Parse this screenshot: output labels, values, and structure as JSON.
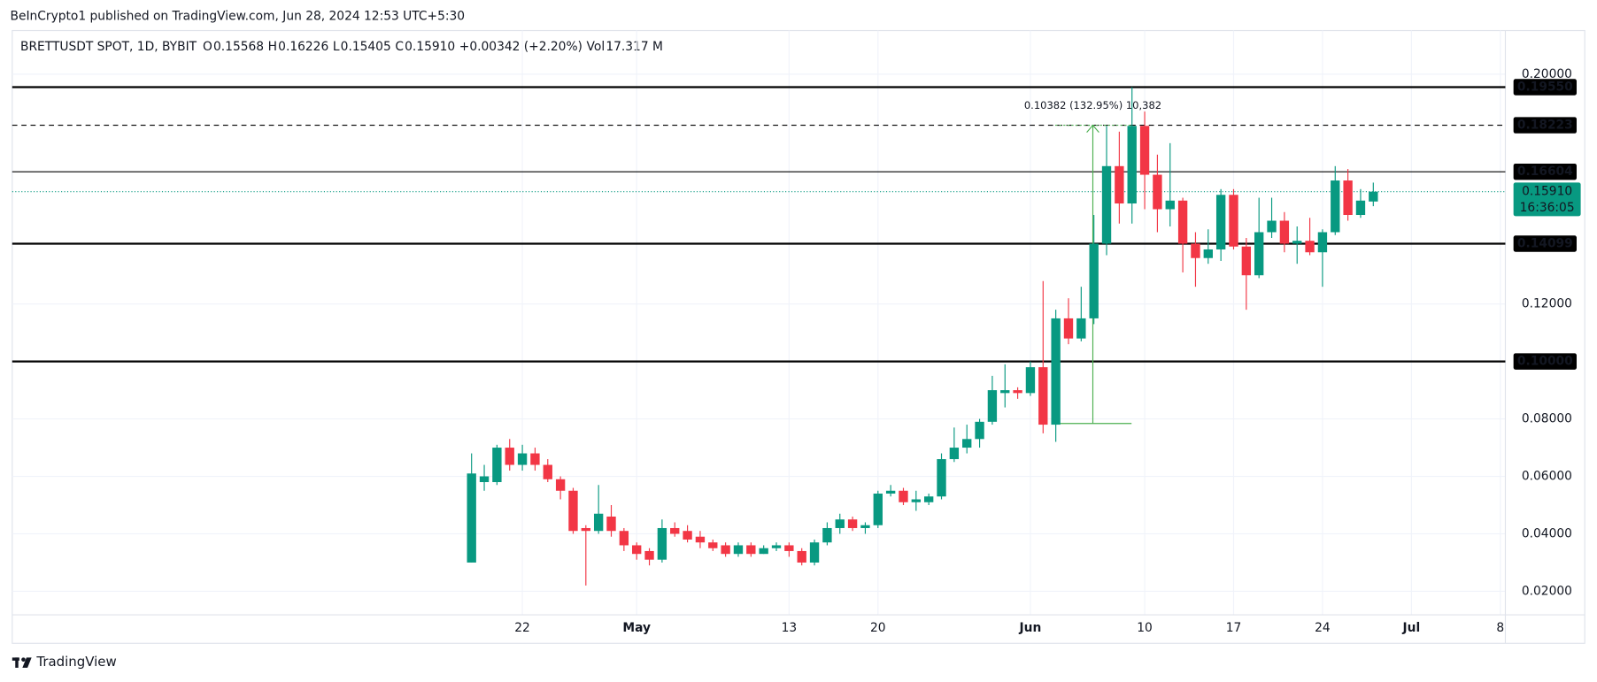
{
  "header": {
    "published": "BeInCrypto1 published on TradingView.com, Jun 28, 2024 12:53 UTC+5:30"
  },
  "legend": {
    "symbol": "BRETTUSDT SPOT, 1D, BYBIT",
    "items": [
      {
        "label": "O",
        "value": "0.15568"
      },
      {
        "label": "H",
        "value": "0.16226"
      },
      {
        "label": "L",
        "value": "0.15405"
      },
      {
        "label": "C",
        "value": "0.15910"
      }
    ],
    "change": "+0.00342 (+2.20%)",
    "vol_label": "Vol",
    "vol": "17.317 M"
  },
  "footer": {
    "brand": "TradingView"
  },
  "chart_data": {
    "type": "candlestick",
    "categories": [
      null,
      null,
      null,
      null,
      "22",
      null,
      null,
      null,
      null,
      null,
      null,
      null,
      null,
      "May",
      null,
      null,
      null,
      null,
      null,
      null,
      null,
      null,
      null,
      null,
      null,
      "13",
      null,
      null,
      null,
      null,
      null,
      null,
      "20",
      null,
      null,
      null,
      null,
      null,
      null,
      null,
      null,
      null,
      null,
      null,
      "Jun",
      null,
      null,
      null,
      null,
      null,
      null,
      null,
      null,
      "10",
      null,
      null,
      null,
      null,
      null,
      null,
      "17",
      null,
      null,
      null,
      null,
      null,
      null,
      "24",
      null,
      null,
      null,
      null,
      null,
      null,
      "Jul",
      null,
      null,
      null,
      null,
      null,
      null,
      "8"
    ],
    "open": [
      0.03,
      0.058,
      0.058,
      0.07,
      0.064,
      0.068,
      0.064,
      0.059,
      0.055,
      0.042,
      0.041,
      0.046,
      0.041,
      0.036,
      0.034,
      0.031,
      0.042,
      0.041,
      0.039,
      0.037,
      0.036,
      0.033,
      0.036,
      0.033,
      0.035,
      0.036,
      0.034,
      0.03,
      0.037,
      0.042,
      0.045,
      0.042,
      0.043,
      0.054,
      0.055,
      0.051,
      0.051,
      0.053,
      0.066,
      0.07,
      0.073,
      0.079,
      0.089,
      0.09,
      0.089,
      0.098,
      0.078,
      0.115,
      0.108,
      0.115,
      0.141,
      0.168,
      0.155,
      0.182,
      0.165,
      0.153,
      0.156,
      0.141,
      0.136,
      0.139,
      0.158,
      0.14,
      0.13,
      0.145,
      0.149,
      0.141,
      0.142,
      0.138,
      0.145,
      0.163,
      0.151,
      0.15568,
      null,
      null,
      null,
      null,
      null,
      null,
      null,
      null,
      null,
      null
    ],
    "high": [
      0.068,
      0.064,
      0.071,
      0.073,
      0.071,
      0.07,
      0.066,
      0.06,
      0.056,
      0.043,
      0.057,
      0.05,
      0.042,
      0.037,
      0.035,
      0.045,
      0.044,
      0.043,
      0.041,
      0.038,
      0.037,
      0.037,
      0.037,
      0.036,
      0.037,
      0.037,
      0.035,
      0.038,
      0.044,
      0.047,
      0.046,
      0.044,
      0.055,
      0.057,
      0.056,
      0.055,
      0.054,
      0.068,
      0.077,
      0.078,
      0.08,
      0.095,
      0.099,
      0.091,
      0.1,
      0.128,
      0.118,
      0.122,
      0.126,
      0.151,
      0.182,
      0.18,
      0.1955,
      0.187,
      0.172,
      0.176,
      0.157,
      0.145,
      0.146,
      0.16,
      0.16,
      0.143,
      0.157,
      0.157,
      0.152,
      0.147,
      0.15,
      0.146,
      0.168,
      0.167,
      0.16,
      0.16226,
      null,
      null,
      null,
      null,
      null,
      null,
      null,
      null,
      null,
      null
    ],
    "low": [
      0.03,
      0.055,
      0.057,
      0.062,
      0.062,
      0.062,
      0.058,
      0.052,
      0.04,
      0.022,
      0.04,
      0.039,
      0.034,
      0.031,
      0.029,
      0.03,
      0.039,
      0.037,
      0.035,
      0.034,
      0.032,
      0.032,
      0.032,
      0.033,
      0.034,
      0.032,
      0.029,
      0.029,
      0.036,
      0.04,
      0.041,
      0.04,
      0.042,
      0.053,
      0.05,
      0.048,
      0.05,
      0.052,
      0.065,
      0.068,
      0.07,
      0.078,
      0.084,
      0.087,
      0.088,
      0.075,
      0.072,
      0.106,
      0.107,
      0.113,
      0.137,
      0.148,
      0.148,
      0.153,
      0.145,
      0.147,
      0.131,
      0.126,
      0.134,
      0.135,
      0.139,
      0.118,
      0.129,
      0.143,
      0.138,
      0.134,
      0.137,
      0.126,
      0.144,
      0.149,
      0.15,
      0.15405,
      null,
      null,
      null,
      null,
      null,
      null,
      null,
      null,
      null,
      null
    ],
    "close": [
      0.061,
      0.06,
      0.07,
      0.064,
      0.068,
      0.064,
      0.059,
      0.055,
      0.041,
      0.041,
      0.047,
      0.041,
      0.036,
      0.033,
      0.031,
      0.042,
      0.04,
      0.038,
      0.037,
      0.035,
      0.033,
      0.036,
      0.033,
      0.035,
      0.036,
      0.034,
      0.03,
      0.037,
      0.042,
      0.045,
      0.042,
      0.043,
      0.054,
      0.055,
      0.051,
      0.052,
      0.053,
      0.066,
      0.07,
      0.073,
      0.079,
      0.09,
      0.09,
      0.089,
      0.098,
      0.078,
      0.115,
      0.108,
      0.115,
      0.141,
      0.168,
      0.155,
      0.182,
      0.165,
      0.153,
      0.156,
      0.141,
      0.136,
      0.139,
      0.158,
      0.14,
      0.13,
      0.145,
      0.149,
      0.141,
      0.142,
      0.138,
      0.145,
      0.163,
      0.151,
      0.156,
      0.1591,
      null,
      null,
      null,
      null,
      null,
      null,
      null,
      null,
      null,
      null
    ],
    "up_color": "#089981",
    "down_color": "#f23645",
    "ylim": [
      0.0118,
      0.2152
    ],
    "yticks": [
      {
        "value": 0.02,
        "label": "0.02000"
      },
      {
        "value": 0.04,
        "label": "0.04000"
      },
      {
        "value": 0.06,
        "label": "0.06000"
      },
      {
        "value": 0.08,
        "label": "0.08000"
      },
      {
        "value": 0.12,
        "label": "0.12000"
      },
      {
        "value": 0.2,
        "label": "0.20000"
      }
    ],
    "grid": true,
    "levels": [
      {
        "value": 0.1955,
        "label": "0.19550",
        "style": "solid"
      },
      {
        "value": 0.18223,
        "label": "0.18223",
        "style": "dashed"
      },
      {
        "value": 0.16604,
        "label": "0.16604",
        "style": "thin"
      },
      {
        "value": 0.14099,
        "label": "0.14099",
        "style": "solid"
      },
      {
        "value": 0.1,
        "label": "0.10000",
        "style": "solid"
      }
    ],
    "last_price": {
      "value": 0.1591,
      "label": "0.15910",
      "countdown": "16:36:05",
      "color": "#089981"
    },
    "measure": {
      "label": "0.10382 (132.95%) 10,382",
      "from": 0.07841,
      "to": 0.18223,
      "color": "#4caf50"
    }
  }
}
